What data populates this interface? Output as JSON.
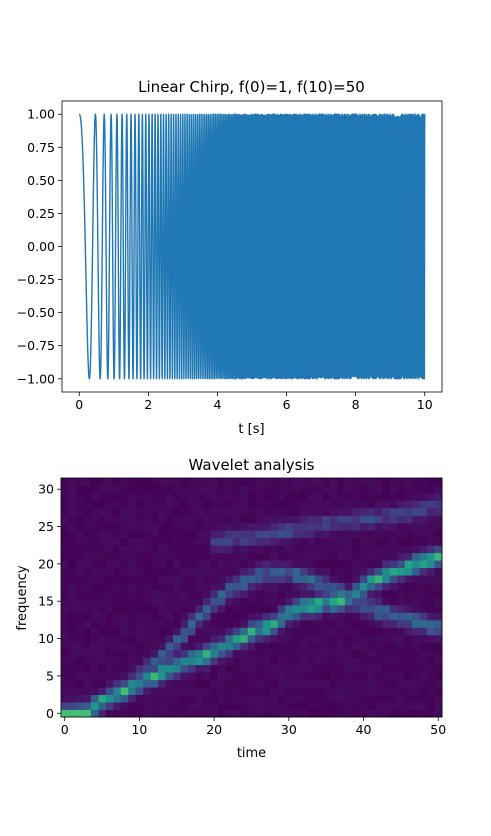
{
  "chart_data": [
    {
      "type": "line",
      "title": "Linear Chirp, f(0)=1, f(10)=50",
      "xlabel": "t [s]",
      "ylabel": "",
      "xlim": [
        -0.5,
        10.5
      ],
      "ylim": [
        -1.1,
        1.1
      ],
      "x_ticks": [
        0,
        2,
        4,
        6,
        8,
        10
      ],
      "y_ticks": [
        -1.0,
        -0.75,
        -0.5,
        -0.25,
        0.0,
        0.25,
        0.5,
        0.75,
        1.0
      ],
      "x_tick_labels": [
        "0",
        "2",
        "4",
        "6",
        "8",
        "10"
      ],
      "y_tick_labels": [
        "−1.00",
        "−0.75",
        "−0.50",
        "−0.25",
        "0.00",
        "0.25",
        "0.50",
        "0.75",
        "1.00"
      ],
      "signal": {
        "function": "cos",
        "f0": 1,
        "t1": 10,
        "f1": 50,
        "t_start": 0,
        "t_end": 10
      },
      "color": "#1f77b4",
      "grid": false
    },
    {
      "type": "heatmap",
      "title": "Wavelet analysis",
      "xlabel": "time",
      "ylabel": "frequency",
      "xlim": [
        -0.5,
        50.5
      ],
      "ylim": [
        -0.5,
        31.5
      ],
      "x_ticks": [
        0,
        10,
        20,
        30,
        40,
        50
      ],
      "y_ticks": [
        0,
        5,
        10,
        15,
        20,
        25,
        30
      ],
      "x_tick_labels": [
        "0",
        "10",
        "20",
        "30",
        "40",
        "50"
      ],
      "y_tick_labels": [
        "0",
        "5",
        "10",
        "15",
        "20",
        "25",
        "30"
      ],
      "n_time": 51,
      "n_freq": 32,
      "colormap": "viridis",
      "ridges": [
        [
          [
            0,
            0.0
          ],
          [
            3,
            0.3
          ],
          [
            6,
            2.2
          ],
          [
            10,
            4.0
          ],
          [
            13,
            5.5
          ],
          [
            16,
            6.8
          ],
          [
            19,
            7.8
          ],
          [
            22,
            9.3
          ],
          [
            25,
            10.8
          ],
          [
            28,
            12.0
          ],
          [
            31,
            14.0
          ],
          [
            35,
            14.8
          ],
          [
            38,
            15.2
          ],
          [
            40,
            17.0
          ],
          [
            43,
            18.5
          ],
          [
            47,
            20.0
          ],
          [
            50,
            21.0
          ]
        ],
        [
          [
            6,
            2.0
          ],
          [
            10,
            4.8
          ],
          [
            14,
            8.5
          ],
          [
            18,
            13.0
          ],
          [
            22,
            16.5
          ],
          [
            26,
            18.5
          ],
          [
            30,
            18.8
          ],
          [
            34,
            17.5
          ],
          [
            37,
            16.0
          ],
          [
            40,
            14.5
          ],
          [
            44,
            13.0
          ],
          [
            47,
            12.3
          ],
          [
            50,
            11.5
          ]
        ],
        [
          [
            20,
            23.0
          ],
          [
            26,
            23.8
          ],
          [
            32,
            24.8
          ],
          [
            38,
            25.8
          ],
          [
            44,
            26.5
          ],
          [
            50,
            27.8
          ]
        ]
      ]
    }
  ]
}
